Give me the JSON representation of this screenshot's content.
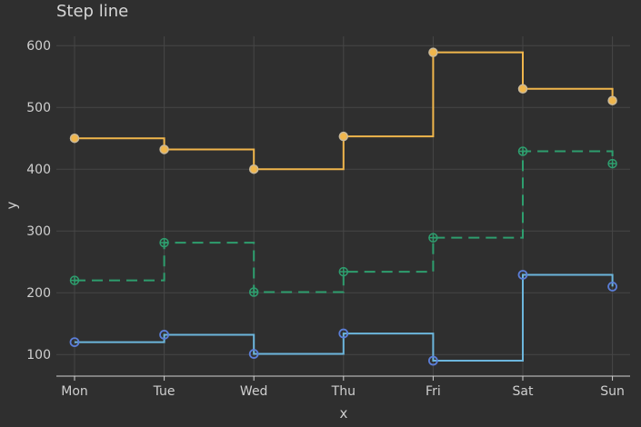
{
  "chart_data": {
    "type": "line",
    "style": "step",
    "title": "Step line",
    "xlabel": "x",
    "ylabel": "y",
    "categories": [
      "Mon",
      "Tue",
      "Wed",
      "Thu",
      "Fri",
      "Sat",
      "Sun"
    ],
    "yticks": [
      100,
      200,
      300,
      400,
      500,
      600
    ],
    "ylim": [
      65,
      615
    ],
    "grid": true,
    "legend": "none",
    "series": [
      {
        "color": "#f0b64c",
        "line_style": "solid",
        "marker": "filled-circle",
        "values": [
          450,
          432,
          400,
          453,
          589,
          530,
          511
        ]
      },
      {
        "color": "#2e9e6e",
        "line_style": "dashed",
        "marker": "crossed-circle",
        "values": [
          220,
          281,
          201,
          234,
          289,
          429,
          409
        ]
      },
      {
        "color": "#6cb6dc",
        "marker_color": "#5b7ed8",
        "line_style": "solid",
        "marker": "open-circle",
        "values": [
          120,
          132,
          101,
          134,
          90,
          229,
          210
        ]
      }
    ]
  }
}
